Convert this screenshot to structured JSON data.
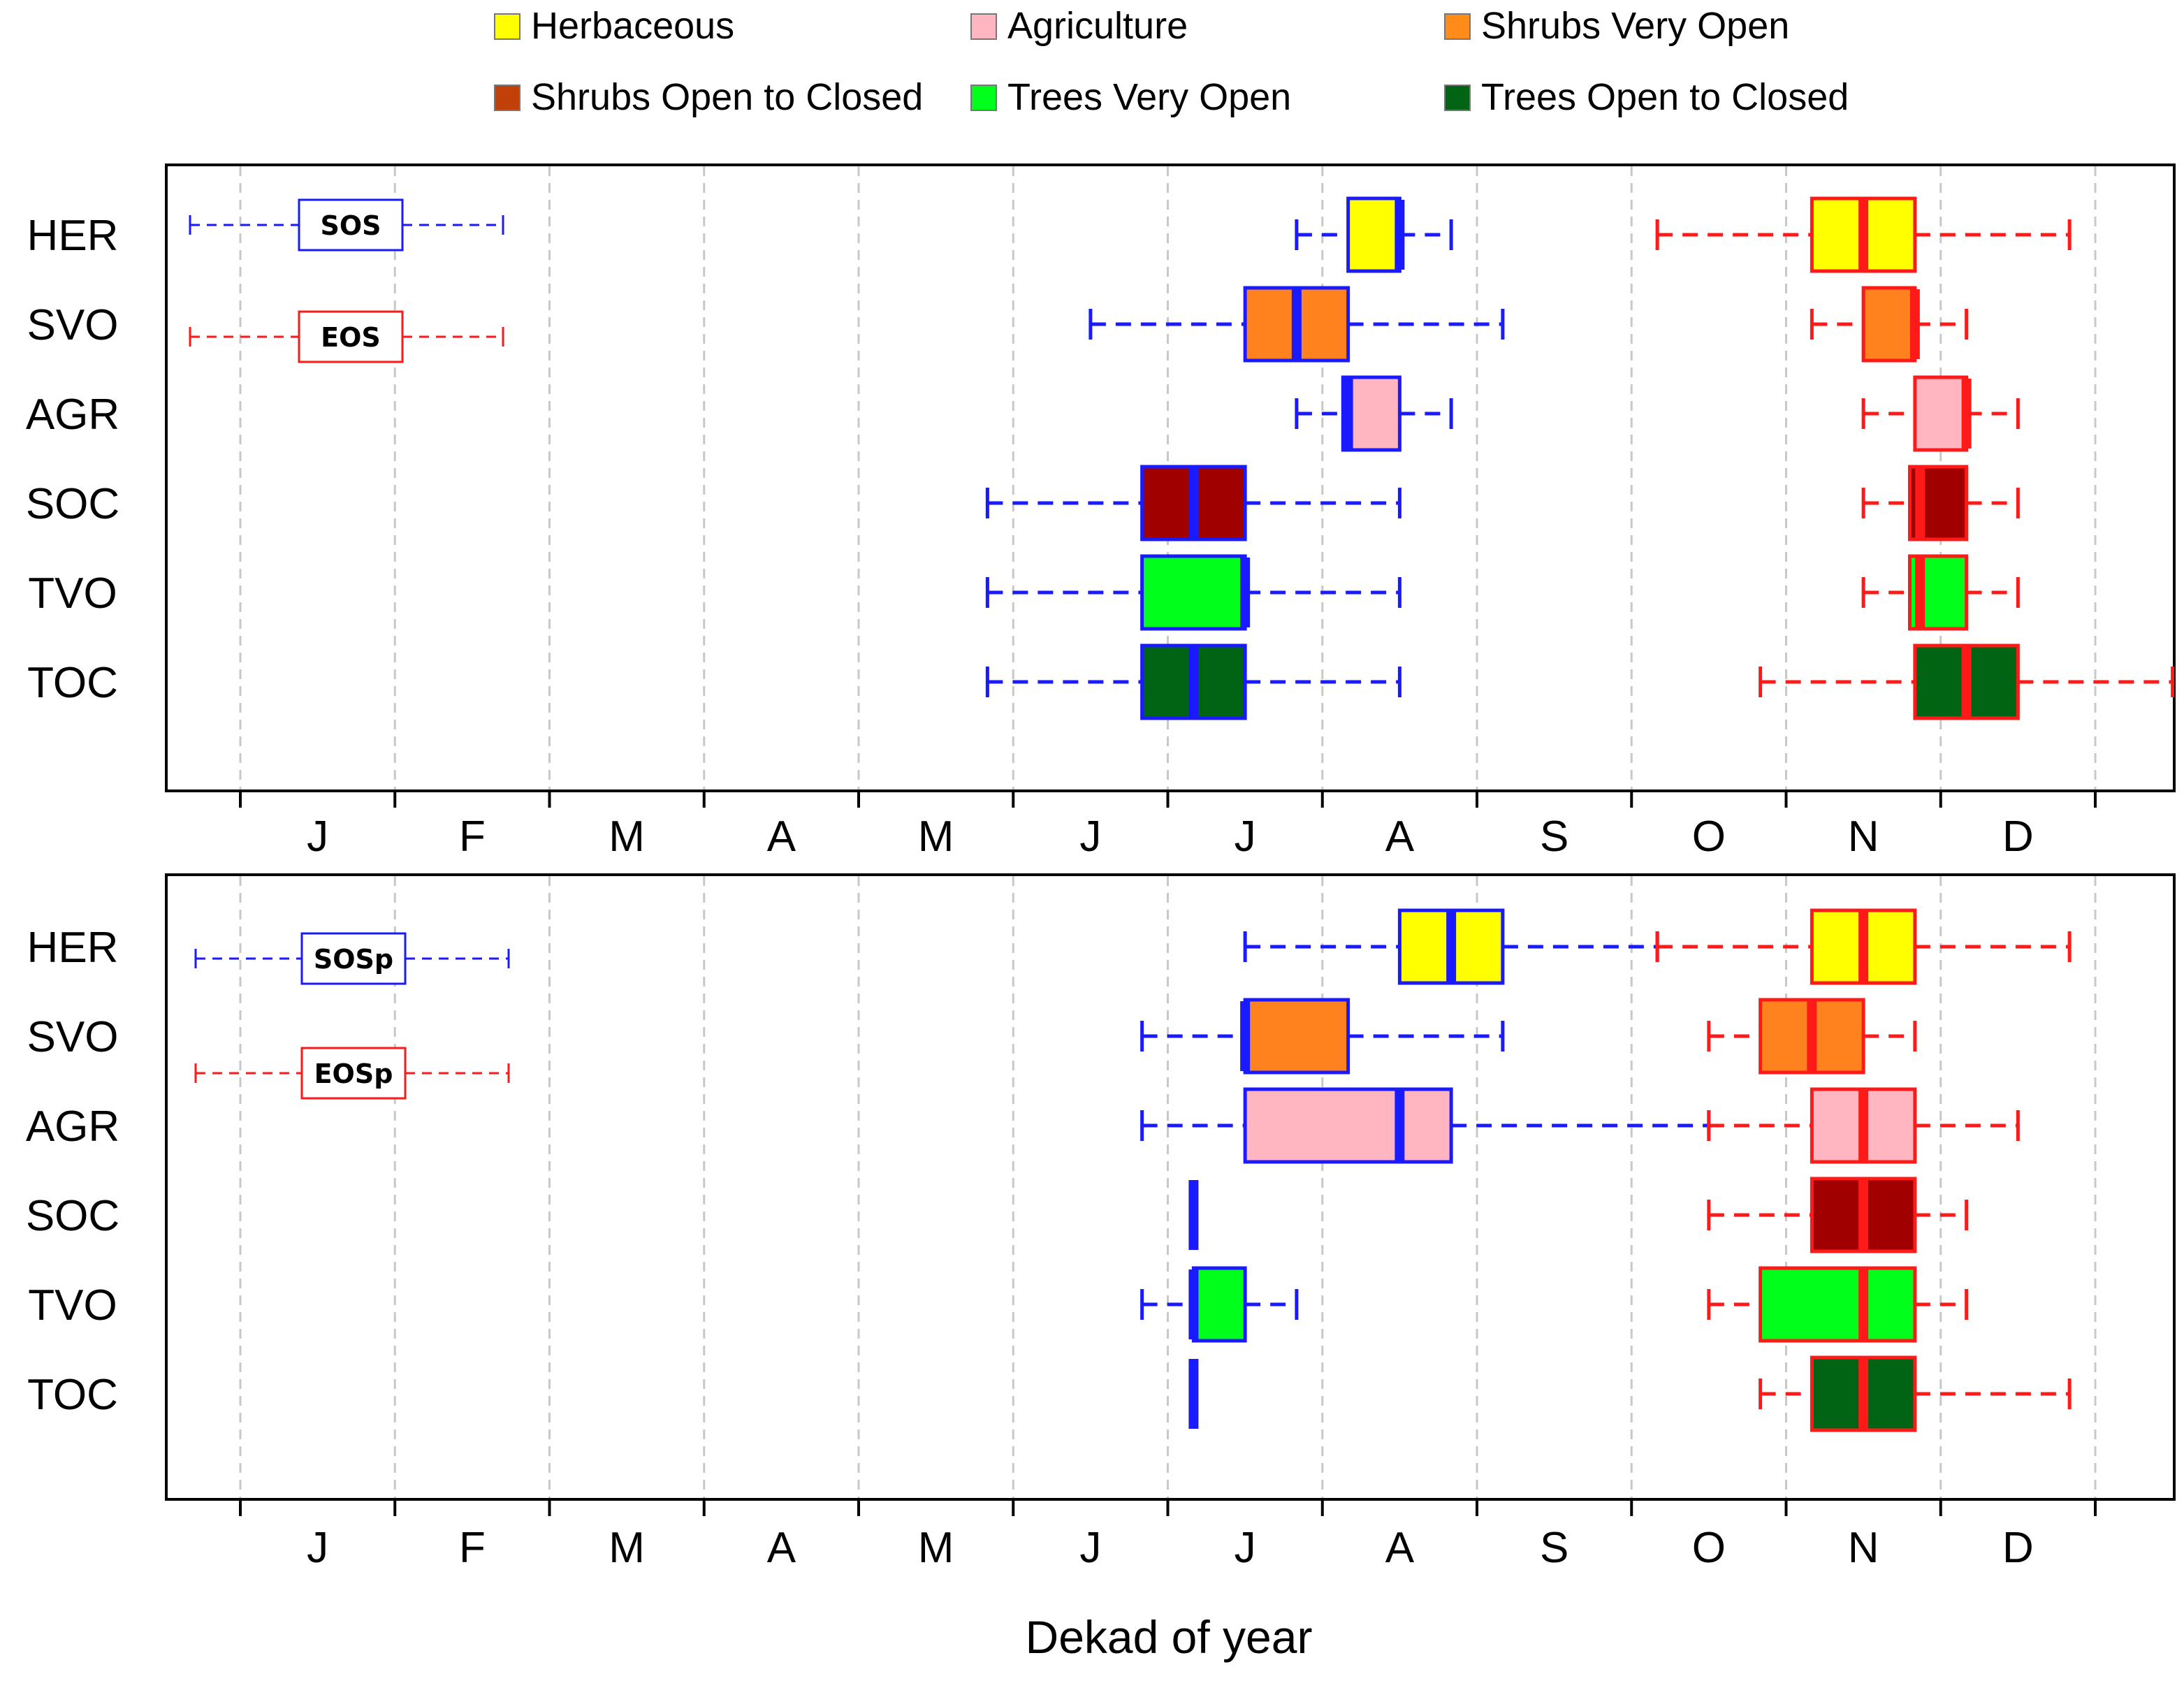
{
  "chart_data": {
    "type": "boxplot",
    "xlabel": "Dekad of year",
    "x_range_dekads": [
      0,
      36
    ],
    "month_ticks": [
      "J",
      "F",
      "M",
      "A",
      "M",
      "J",
      "J",
      "A",
      "S",
      "O",
      "N",
      "D"
    ],
    "categories": [
      "HER",
      "SVO",
      "AGR",
      "SOC",
      "TVO",
      "TOC"
    ],
    "legend": [
      {
        "label": "Herbaceous",
        "color": "#ffff00"
      },
      {
        "label": "Agriculture",
        "color": "#ffb6c1"
      },
      {
        "label": "Shrubs Very Open",
        "color": "#ff8c1a"
      },
      {
        "label": "Shrubs Open to Closed",
        "color": "#c1400a"
      },
      {
        "label": "Trees Very Open",
        "color": "#00ff1a"
      },
      {
        "label": "Trees Open to Closed",
        "color": "#006414"
      }
    ],
    "fills": {
      "HER": "#ffff00",
      "SVO": "#ff821e",
      "AGR": "#ffb6c1",
      "SOC": "#a00000",
      "TVO": "#00ff1a",
      "TOC": "#006414"
    },
    "line_colors": {
      "start": "#1a1aff",
      "end": "#ff1a1a"
    },
    "panels": [
      {
        "name": "top",
        "series": [
          {
            "name": "SOS",
            "role": "start",
            "boxes": [
              {
                "cat": "HER",
                "min": 20.5,
                "q1": 21.5,
                "median": 22.5,
                "q3": 22.5,
                "max": 23.5
              },
              {
                "cat": "SVO",
                "min": 16.5,
                "q1": 19.5,
                "median": 20.5,
                "q3": 21.5,
                "max": 24.5
              },
              {
                "cat": "AGR",
                "min": 20.5,
                "q1": 21.4,
                "median": 21.5,
                "q3": 22.5,
                "max": 23.5
              },
              {
                "cat": "SOC",
                "min": 14.5,
                "q1": 17.5,
                "median": 18.5,
                "q3": 19.5,
                "max": 22.5
              },
              {
                "cat": "TVO",
                "min": 14.5,
                "q1": 17.5,
                "median": 19.5,
                "q3": 19.5,
                "max": 22.5
              },
              {
                "cat": "TOC",
                "min": 14.5,
                "q1": 17.5,
                "median": 18.5,
                "q3": 19.5,
                "max": 22.5
              }
            ]
          },
          {
            "name": "EOS",
            "role": "end",
            "boxes": [
              {
                "cat": "HER",
                "min": 27.5,
                "q1": 30.5,
                "median": 31.5,
                "q3": 32.5,
                "max": 35.5
              },
              {
                "cat": "SVO",
                "min": 30.5,
                "q1": 31.5,
                "median": 32.5,
                "q3": 32.5,
                "max": 33.5
              },
              {
                "cat": "AGR",
                "min": 31.5,
                "q1": 32.5,
                "median": 33.5,
                "q3": 33.5,
                "max": 34.5
              },
              {
                "cat": "SOC",
                "min": 31.5,
                "q1": 32.4,
                "median": 32.6,
                "q3": 33.5,
                "max": 34.5
              },
              {
                "cat": "TVO",
                "min": 31.5,
                "q1": 32.4,
                "median": 32.6,
                "q3": 33.5,
                "max": 34.5
              },
              {
                "cat": "TOC",
                "min": 29.5,
                "q1": 32.5,
                "median": 33.5,
                "q3": 34.5,
                "max": 37.5
              }
            ]
          }
        ]
      },
      {
        "name": "bottom",
        "series": [
          {
            "name": "SOSp",
            "role": "start",
            "boxes": [
              {
                "cat": "HER",
                "min": 19.5,
                "q1": 22.5,
                "median": 23.5,
                "q3": 24.5,
                "max": 27.5
              },
              {
                "cat": "SVO",
                "min": 17.5,
                "q1": 19.5,
                "median": 19.5,
                "q3": 21.5,
                "max": 24.5
              },
              {
                "cat": "AGR",
                "min": 17.5,
                "q1": 19.5,
                "median": 22.5,
                "q3": 23.5,
                "max": 28.5
              },
              {
                "cat": "SOC",
                "min": 18.5,
                "q1": 18.5,
                "median": 18.5,
                "q3": 18.5,
                "max": 18.5
              },
              {
                "cat": "TVO",
                "min": 17.5,
                "q1": 18.5,
                "median": 18.5,
                "q3": 19.5,
                "max": 20.5
              },
              {
                "cat": "TOC",
                "min": 18.5,
                "q1": 18.5,
                "median": 18.5,
                "q3": 18.5,
                "max": 18.5
              }
            ]
          },
          {
            "name": "EOSp",
            "role": "end",
            "boxes": [
              {
                "cat": "HER",
                "min": 27.5,
                "q1": 30.5,
                "median": 31.5,
                "q3": 32.5,
                "max": 35.5
              },
              {
                "cat": "SVO",
                "min": 28.5,
                "q1": 29.5,
                "median": 30.5,
                "q3": 31.5,
                "max": 32.5
              },
              {
                "cat": "AGR",
                "min": 28.5,
                "q1": 30.5,
                "median": 31.5,
                "q3": 32.5,
                "max": 34.5
              },
              {
                "cat": "SOC",
                "min": 28.5,
                "q1": 30.5,
                "median": 31.5,
                "q3": 32.5,
                "max": 33.5
              },
              {
                "cat": "TVO",
                "min": 28.5,
                "q1": 29.5,
                "median": 31.5,
                "q3": 32.5,
                "max": 33.5
              },
              {
                "cat": "TOC",
                "min": 29.5,
                "q1": 30.5,
                "median": 31.5,
                "q3": 32.5,
                "max": 35.5
              }
            ]
          }
        ]
      }
    ]
  }
}
